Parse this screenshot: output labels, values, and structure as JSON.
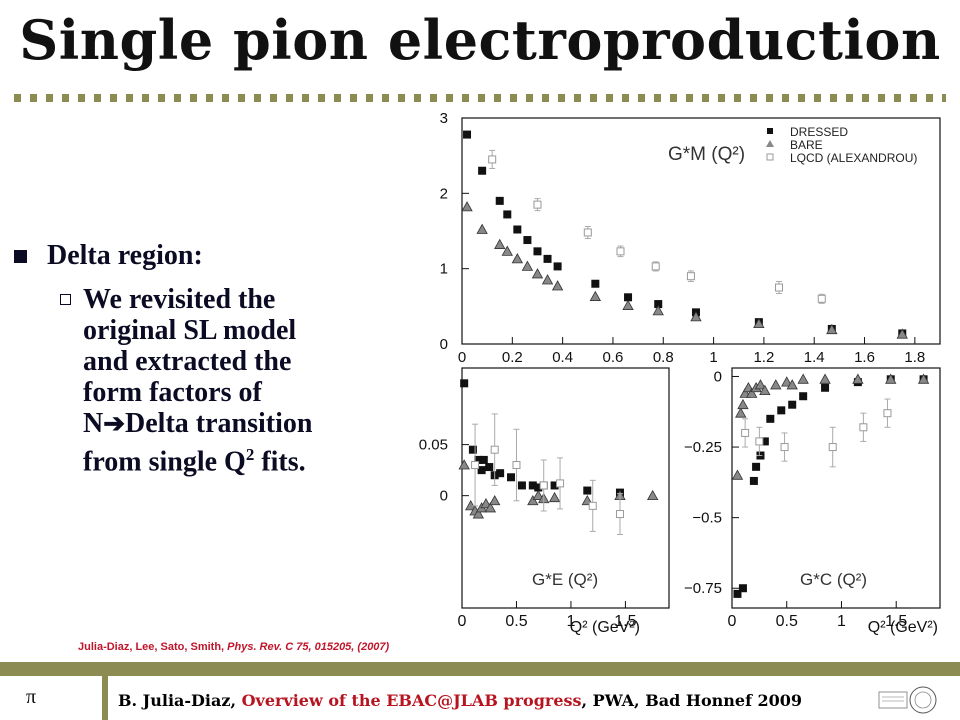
{
  "slide": {
    "title": "Single pion electroproduction",
    "bullet_main": "Delta region:",
    "bullet_sub_lines": [
      "We revisited the",
      "original SL model",
      "and extracted the",
      "form factors of"
    ],
    "bullet_transition": [
      "N",
      "Delta transition"
    ],
    "bullet_fits": [
      "from single Q",
      "2",
      " fits."
    ],
    "reference": {
      "authors": "Julia-Diaz, Lee, Sato, Smith, ",
      "journal": "Phys. Rev. C 75, 015205, (2007)"
    },
    "footer_symbol": "π",
    "footer": {
      "author": "B. Julia-Diaz, ",
      "talk": "Overview of the EBAC@JLAB progress",
      "venue": ",  PWA, Bad Honnef 2009"
    }
  },
  "chart_data": [
    {
      "type": "scatter",
      "title": "G*M (Q²)",
      "xlim": [
        0,
        1.9
      ],
      "ylim": [
        0,
        3
      ],
      "x_ticks": [
        "0",
        "0.2",
        "0.4",
        "0.6",
        "0.8",
        "1",
        "1.2",
        "1.4",
        "1.6",
        "1.8"
      ],
      "y_ticks": [
        "0",
        "1",
        "2",
        "3"
      ],
      "legend_position": "top-right",
      "series": [
        {
          "name": "DRESSED",
          "x": [
            0.02,
            0.08,
            0.15,
            0.18,
            0.22,
            0.26,
            0.3,
            0.34,
            0.38,
            0.53,
            0.66,
            0.78,
            0.93,
            1.18,
            1.47,
            1.75
          ],
          "y": [
            2.78,
            2.3,
            1.9,
            1.72,
            1.52,
            1.38,
            1.23,
            1.13,
            1.03,
            0.8,
            0.62,
            0.53,
            0.42,
            0.29,
            0.2,
            0.14
          ]
        },
        {
          "name": "BARE",
          "x": [
            0.02,
            0.08,
            0.15,
            0.18,
            0.22,
            0.26,
            0.3,
            0.34,
            0.38,
            0.53,
            0.66,
            0.78,
            0.93,
            1.18,
            1.47,
            1.75
          ],
          "y": [
            1.82,
            1.52,
            1.32,
            1.23,
            1.13,
            1.03,
            0.93,
            0.85,
            0.77,
            0.63,
            0.51,
            0.44,
            0.36,
            0.27,
            0.19,
            0.13
          ]
        },
        {
          "name": "LQCD (ALEXANDROU)",
          "x": [
            0.12,
            0.3,
            0.5,
            0.63,
            0.77,
            0.91,
            1.26,
            1.43
          ],
          "y": [
            2.45,
            1.85,
            1.48,
            1.23,
            1.03,
            0.9,
            0.75,
            0.6
          ],
          "err": [
            0.12,
            0.08,
            0.08,
            0.07,
            0.06,
            0.07,
            0.08,
            0.06
          ]
        }
      ]
    },
    {
      "type": "scatter",
      "title": "G*E (Q²)",
      "xlim": [
        0,
        1.9
      ],
      "ylim": [
        -0.11,
        0.125
      ],
      "x_ticks": [
        "0",
        "0.5",
        "1",
        "1.5"
      ],
      "y_ticks": [
        "0",
        "0.05"
      ],
      "series": [
        {
          "name": "DRESSED",
          "x": [
            0.02,
            0.1,
            0.15,
            0.18,
            0.2,
            0.25,
            0.3,
            0.35,
            0.45,
            0.55,
            0.65,
            0.7,
            0.75,
            0.85,
            1.15,
            1.45
          ],
          "y": [
            0.11,
            0.045,
            0.035,
            0.025,
            0.035,
            0.028,
            0.02,
            0.022,
            0.018,
            0.01,
            0.01,
            0.008,
            0.01,
            0.01,
            0.005,
            0.003
          ]
        },
        {
          "name": "BARE",
          "x": [
            0.02,
            0.08,
            0.12,
            0.15,
            0.18,
            0.22,
            0.26,
            0.3,
            0.65,
            0.7,
            0.75,
            0.85,
            1.15,
            1.45,
            1.75
          ],
          "y": [
            0.03,
            -0.01,
            -0.015,
            -0.018,
            -0.012,
            -0.008,
            -0.012,
            -0.005,
            -0.005,
            0.0,
            -0.003,
            -0.002,
            -0.005,
            0.0,
            0.0
          ]
        },
        {
          "name": "LQCD (ALEXANDROU)",
          "x": [
            0.12,
            0.3,
            0.5,
            0.75,
            0.9,
            1.2,
            1.45
          ],
          "y": [
            0.03,
            0.045,
            0.03,
            0.01,
            0.012,
            -0.01,
            -0.018
          ],
          "err": [
            0.04,
            0.035,
            0.035,
            0.025,
            0.025,
            0.025,
            0.02
          ]
        }
      ]
    },
    {
      "type": "scatter",
      "title": "G*C (Q²)",
      "xlim": [
        0,
        1.9
      ],
      "ylim": [
        -0.82,
        0.03
      ],
      "x_ticks": [
        "0",
        "0.5",
        "1",
        "1.5"
      ],
      "y_ticks": [
        "0",
        "-0.25",
        "-0.5",
        "-0.75"
      ],
      "series": [
        {
          "name": "DRESSED",
          "x": [
            0.05,
            0.1,
            0.2,
            0.22,
            0.26,
            0.3,
            0.35,
            0.45,
            0.55,
            0.65,
            0.85,
            1.15,
            1.45,
            1.75
          ],
          "y": [
            -0.77,
            -0.75,
            -0.37,
            -0.32,
            -0.28,
            -0.23,
            -0.15,
            -0.12,
            -0.1,
            -0.07,
            -0.04,
            -0.02,
            -0.01,
            -0.01
          ]
        },
        {
          "name": "BARE",
          "x": [
            0.05,
            0.08,
            0.1,
            0.12,
            0.15,
            0.18,
            0.22,
            0.26,
            0.3,
            0.4,
            0.5,
            0.55,
            0.65,
            0.85,
            1.15,
            1.45,
            1.75
          ],
          "y": [
            -0.35,
            -0.13,
            -0.1,
            -0.06,
            -0.04,
            -0.06,
            -0.04,
            -0.03,
            -0.05,
            -0.03,
            -0.02,
            -0.03,
            -0.01,
            -0.01,
            -0.01,
            -0.01,
            -0.01
          ]
        },
        {
          "name": "LQCD (ALEXANDROU)",
          "x": [
            0.12,
            0.25,
            0.48,
            0.92,
            1.2,
            1.42
          ],
          "y": [
            -0.2,
            -0.23,
            -0.25,
            -0.25,
            -0.18,
            -0.13
          ],
          "err": [
            0.05,
            0.05,
            0.05,
            0.07,
            0.05,
            0.05
          ]
        }
      ]
    }
  ]
}
